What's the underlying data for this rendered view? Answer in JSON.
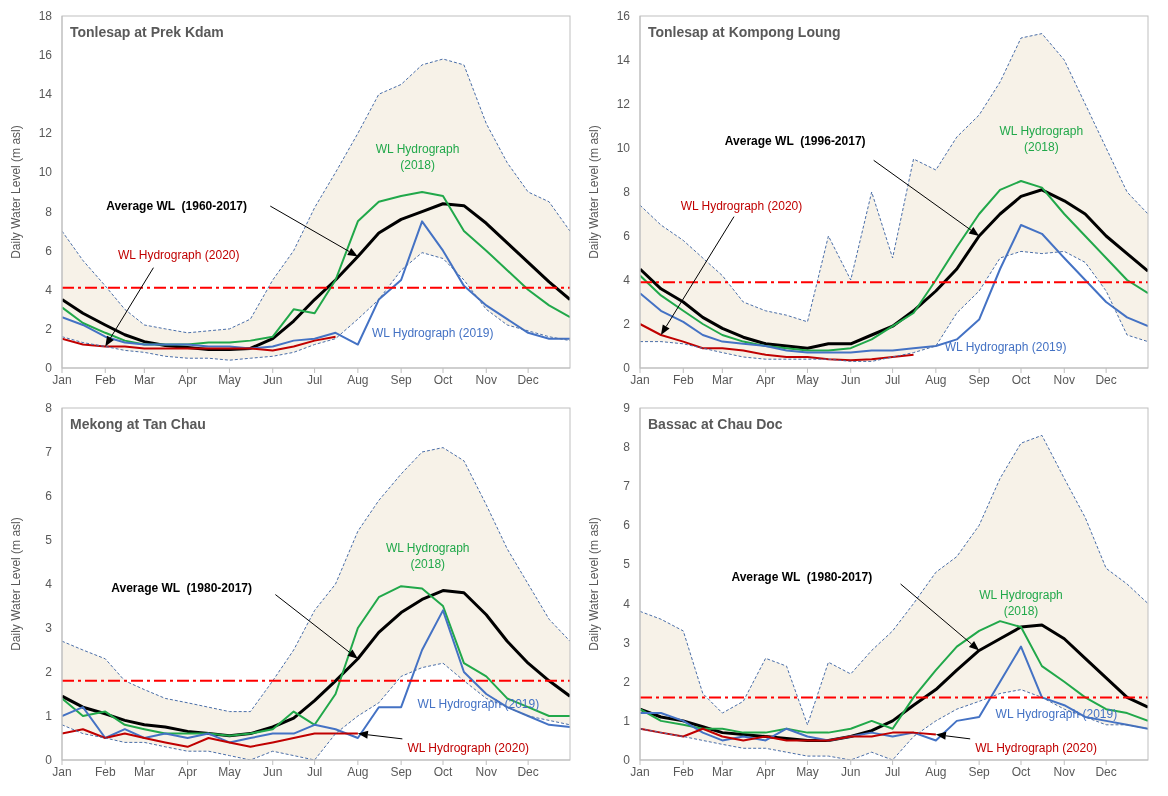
{
  "chart_data": [
    {
      "type": "line",
      "title": "Tonlesap at Prek Kdam",
      "ylabel": "Daily Water Level (m asl)",
      "marker": "none",
      "legend": false,
      "x": [
        "--01-01",
        "--01-16",
        "--02-01",
        "--02-15",
        "--03-01",
        "--03-16",
        "--04-01",
        "--04-16",
        "--05-01",
        "--05-16",
        "--06-01",
        "--06-16",
        "--07-01",
        "--07-16",
        "--08-01",
        "--08-16",
        "--09-01",
        "--09-16",
        "--10-01",
        "--10-16",
        "--11-01",
        "--11-16",
        "--12-01",
        "--12-16",
        "--12-31"
      ],
      "xlim": [
        "--01-01",
        "--12-31"
      ],
      "xticks": [
        {
          "value": "--01-01",
          "label": "Jan"
        },
        {
          "value": "--02-01",
          "label": "Feb"
        },
        {
          "value": "--03-01",
          "label": "Mar"
        },
        {
          "value": "--04-01",
          "label": "Apr"
        },
        {
          "value": "--05-01",
          "label": "May"
        },
        {
          "value": "--06-01",
          "label": "Jun"
        },
        {
          "value": "--07-01",
          "label": "Jul"
        },
        {
          "value": "--08-01",
          "label": "Aug"
        },
        {
          "value": "--09-01",
          "label": "Sep"
        },
        {
          "value": "--10-01",
          "label": "Oct"
        },
        {
          "value": "--11-01",
          "label": "Nov"
        },
        {
          "value": "--12-01",
          "label": "Dec"
        }
      ],
      "ylim": [
        0,
        18
      ],
      "yticks": [
        0,
        2,
        4,
        6,
        8,
        10,
        12,
        14,
        16,
        18
      ],
      "series": [
        {
          "name": "Average WL  (1960-2017)",
          "color": "#000000",
          "values": [
            3.5,
            2.8,
            2.2,
            1.7,
            1.35,
            1.15,
            1.05,
            0.95,
            0.95,
            1.0,
            1.5,
            2.4,
            3.5,
            4.5,
            5.7,
            6.9,
            7.6,
            8.0,
            8.4,
            8.3,
            7.4,
            6.4,
            5.4,
            4.4,
            3.5
          ],
          "lower": [
            1.6,
            1.3,
            1.1,
            0.9,
            0.8,
            0.6,
            0.5,
            0.5,
            0.4,
            0.5,
            0.6,
            0.8,
            1.2,
            1.5,
            2.5,
            3.5,
            5.0,
            5.9,
            5.6,
            4.5,
            3.0,
            2.2,
            1.9,
            1.6,
            1.4
          ],
          "upper": [
            7.0,
            5.5,
            4.2,
            3.0,
            2.2,
            2.0,
            1.8,
            1.9,
            2.0,
            2.5,
            4.5,
            6.0,
            8.2,
            10.0,
            12.0,
            14.0,
            14.5,
            15.5,
            15.8,
            15.5,
            12.5,
            10.5,
            9.0,
            8.5,
            7.0
          ]
        },
        {
          "name": "WL Hydrograph (2018)",
          "color": "#21a84a",
          "values": [
            3.1,
            2.3,
            1.8,
            1.4,
            1.2,
            1.2,
            1.2,
            1.3,
            1.3,
            1.4,
            1.6,
            3.0,
            2.8,
            4.5,
            7.5,
            8.5,
            8.8,
            9.0,
            8.8,
            7.0,
            6.0,
            5.0,
            4.0,
            3.2,
            2.6
          ]
        },
        {
          "name": "WL Hydrograph (2019)",
          "color": "#4472c4",
          "values": [
            2.6,
            2.2,
            1.6,
            1.3,
            1.2,
            1.2,
            1.2,
            1.1,
            1.1,
            1.0,
            1.1,
            1.4,
            1.5,
            1.8,
            1.2,
            3.5,
            4.5,
            7.5,
            6.0,
            4.2,
            3.2,
            2.5,
            1.8,
            1.5,
            1.5
          ]
        },
        {
          "name": "WL Hydrograph (2020)",
          "color": "#c00000",
          "values": [
            1.5,
            1.2,
            1.1,
            1.1,
            1.0,
            1.0,
            1.0,
            1.0,
            1.0,
            1.0,
            0.9,
            1.1,
            1.4,
            1.6,
            null,
            null,
            null,
            null,
            null,
            null,
            null,
            null,
            null,
            null,
            null
          ]
        },
        {
          "color": "#4a6ea8",
          "line_style": "dashed",
          "values": [
            7.0,
            5.5,
            4.2,
            3.0,
            2.2,
            2.0,
            1.8,
            1.9,
            2.0,
            2.5,
            4.5,
            6.0,
            8.2,
            10.0,
            12.0,
            14.0,
            14.5,
            15.5,
            15.8,
            15.5,
            12.5,
            10.5,
            9.0,
            8.5,
            7.0
          ]
        },
        {
          "color": "#4a6ea8",
          "line_style": "dashed",
          "values": [
            1.6,
            1.3,
            1.1,
            0.9,
            0.8,
            0.6,
            0.5,
            0.5,
            0.4,
            0.5,
            0.6,
            0.8,
            1.2,
            1.5,
            2.5,
            3.5,
            5.0,
            5.9,
            5.6,
            4.5,
            3.0,
            2.2,
            1.9,
            1.6,
            1.4
          ]
        }
      ],
      "ref_lines": [
        {
          "axis": "y",
          "value": 4.1,
          "color": "#ff0000",
          "line_style": "dashed"
        }
      ]
    },
    {
      "type": "line",
      "title": "Tonlesap at Kompong Loung",
      "ylabel": "Daily Water Level (m asl)",
      "marker": "none",
      "legend": false,
      "x": [
        "--01-01",
        "--01-16",
        "--02-01",
        "--02-15",
        "--03-01",
        "--03-16",
        "--04-01",
        "--04-16",
        "--05-01",
        "--05-16",
        "--06-01",
        "--06-16",
        "--07-01",
        "--07-16",
        "--08-01",
        "--08-16",
        "--09-01",
        "--09-16",
        "--10-01",
        "--10-16",
        "--11-01",
        "--11-16",
        "--12-01",
        "--12-16",
        "--12-31"
      ],
      "xlim": [
        "--01-01",
        "--12-31"
      ],
      "xticks": [
        {
          "value": "--01-01",
          "label": "Jan"
        },
        {
          "value": "--02-01",
          "label": "Feb"
        },
        {
          "value": "--03-01",
          "label": "Mar"
        },
        {
          "value": "--04-01",
          "label": "Apr"
        },
        {
          "value": "--05-01",
          "label": "May"
        },
        {
          "value": "--06-01",
          "label": "Jun"
        },
        {
          "value": "--07-01",
          "label": "Jul"
        },
        {
          "value": "--08-01",
          "label": "Aug"
        },
        {
          "value": "--09-01",
          "label": "Sep"
        },
        {
          "value": "--10-01",
          "label": "Oct"
        },
        {
          "value": "--11-01",
          "label": "Nov"
        },
        {
          "value": "--12-01",
          "label": "Dec"
        }
      ],
      "ylim": [
        0,
        16
      ],
      "yticks": [
        0,
        2,
        4,
        6,
        8,
        10,
        12,
        14,
        16
      ],
      "series": [
        {
          "name": "Average WL  (1996-2017)",
          "color": "#000000",
          "values": [
            4.5,
            3.6,
            3.0,
            2.3,
            1.8,
            1.4,
            1.1,
            1.0,
            0.9,
            1.1,
            1.1,
            1.5,
            1.9,
            2.6,
            3.5,
            4.5,
            6.0,
            7.0,
            7.8,
            8.1,
            7.6,
            7.0,
            6.0,
            5.2,
            4.4
          ],
          "lower": [
            1.2,
            1.2,
            1.1,
            0.9,
            0.7,
            0.5,
            0.4,
            0.4,
            0.4,
            0.4,
            0.3,
            0.3,
            0.5,
            0.7,
            1.0,
            2.5,
            3.5,
            5.0,
            5.3,
            5.2,
            5.3,
            4.8,
            3.5,
            1.5,
            1.2
          ],
          "upper": [
            7.4,
            6.5,
            5.8,
            5.0,
            4.2,
            3.0,
            2.6,
            2.4,
            2.1,
            6.0,
            4.0,
            8.0,
            5.0,
            9.5,
            9.0,
            10.5,
            11.5,
            13.0,
            15.0,
            15.2,
            14.0,
            12.0,
            10.0,
            8.0,
            7.0
          ]
        },
        {
          "name": "WL Hydrograph (2018)",
          "color": "#21a84a",
          "values": [
            4.2,
            3.3,
            2.6,
            2.0,
            1.5,
            1.2,
            1.0,
            0.9,
            0.8,
            0.8,
            0.9,
            1.3,
            1.9,
            2.5,
            4.0,
            5.5,
            7.0,
            8.1,
            8.5,
            8.2,
            7.0,
            6.0,
            5.0,
            4.0,
            3.4
          ]
        },
        {
          "name": "WL Hydrograph (2019)",
          "color": "#4472c4",
          "values": [
            3.4,
            2.6,
            2.1,
            1.5,
            1.2,
            1.1,
            1.0,
            0.8,
            0.7,
            0.7,
            0.7,
            0.8,
            0.8,
            0.9,
            1.0,
            1.3,
            2.2,
            4.5,
            6.5,
            6.1,
            5.0,
            4.0,
            3.0,
            2.3,
            1.9
          ]
        },
        {
          "name": "WL Hydrograph (2020)",
          "color": "#c00000",
          "values": [
            2.0,
            1.5,
            1.2,
            0.9,
            0.9,
            0.8,
            0.6,
            0.5,
            0.5,
            0.4,
            0.35,
            0.4,
            0.5,
            0.6,
            null,
            null,
            null,
            null,
            null,
            null,
            null,
            null,
            null,
            null,
            null
          ]
        },
        {
          "color": "#4a6ea8",
          "line_style": "dashed",
          "values": [
            7.4,
            6.5,
            5.8,
            5.0,
            4.2,
            3.0,
            2.6,
            2.4,
            2.1,
            6.0,
            4.0,
            8.0,
            5.0,
            9.5,
            9.0,
            10.5,
            11.5,
            13.0,
            15.0,
            15.2,
            14.0,
            12.0,
            10.0,
            8.0,
            7.0
          ]
        },
        {
          "color": "#4a6ea8",
          "line_style": "dashed",
          "values": [
            1.2,
            1.2,
            1.1,
            0.9,
            0.7,
            0.5,
            0.4,
            0.4,
            0.4,
            0.4,
            0.3,
            0.3,
            0.5,
            0.7,
            1.0,
            2.5,
            3.5,
            5.0,
            5.3,
            5.2,
            5.3,
            4.8,
            3.5,
            1.5,
            1.2
          ]
        }
      ],
      "ref_lines": [
        {
          "axis": "y",
          "value": 3.9,
          "color": "#ff0000",
          "line_style": "dashed"
        }
      ]
    },
    {
      "type": "line",
      "title": "Mekong at Tan Chau",
      "ylabel": "Daily Water Level (m asl)",
      "marker": "none",
      "legend": false,
      "x": [
        "--01-01",
        "--01-16",
        "--02-01",
        "--02-15",
        "--03-01",
        "--03-16",
        "--04-01",
        "--04-16",
        "--05-01",
        "--05-16",
        "--06-01",
        "--06-16",
        "--07-01",
        "--07-16",
        "--08-01",
        "--08-16",
        "--09-01",
        "--09-16",
        "--10-01",
        "--10-16",
        "--11-01",
        "--11-16",
        "--12-01",
        "--12-16",
        "--12-31"
      ],
      "xlim": [
        "--01-01",
        "--12-31"
      ],
      "xticks": [
        {
          "value": "--01-01",
          "label": "Jan"
        },
        {
          "value": "--02-01",
          "label": "Feb"
        },
        {
          "value": "--03-01",
          "label": "Mar"
        },
        {
          "value": "--04-01",
          "label": "Apr"
        },
        {
          "value": "--05-01",
          "label": "May"
        },
        {
          "value": "--06-01",
          "label": "Jun"
        },
        {
          "value": "--07-01",
          "label": "Jul"
        },
        {
          "value": "--08-01",
          "label": "Aug"
        },
        {
          "value": "--09-01",
          "label": "Sep"
        },
        {
          "value": "--10-01",
          "label": "Oct"
        },
        {
          "value": "--11-01",
          "label": "Nov"
        },
        {
          "value": "--12-01",
          "label": "Dec"
        }
      ],
      "ylim": [
        0,
        8
      ],
      "yticks": [
        0,
        1,
        2,
        3,
        4,
        5,
        6,
        7,
        8
      ],
      "series": [
        {
          "name": "Average WL  (1980-2017)",
          "color": "#000000",
          "values": [
            1.45,
            1.2,
            1.05,
            0.9,
            0.8,
            0.75,
            0.65,
            0.6,
            0.55,
            0.6,
            0.75,
            0.95,
            1.35,
            1.8,
            2.3,
            2.9,
            3.35,
            3.65,
            3.85,
            3.8,
            3.3,
            2.7,
            2.2,
            1.8,
            1.45
          ],
          "lower": [
            0.8,
            0.6,
            0.5,
            0.4,
            0.4,
            0.3,
            0.2,
            0.2,
            0.1,
            0.0,
            0.2,
            0.1,
            0.0,
            0.6,
            1.0,
            1.3,
            1.9,
            2.1,
            2.2,
            1.8,
            1.4,
            1.2,
            1.0,
            0.9,
            0.8
          ],
          "upper": [
            2.7,
            2.5,
            2.3,
            1.8,
            1.6,
            1.4,
            1.3,
            1.2,
            1.1,
            1.1,
            1.8,
            2.5,
            3.4,
            4.0,
            5.2,
            5.9,
            6.5,
            7.0,
            7.1,
            6.8,
            5.8,
            4.8,
            4.0,
            3.2,
            2.7
          ]
        },
        {
          "name": "WL Hydrograph (2018)",
          "color": "#21a84a",
          "values": [
            1.4,
            1.0,
            1.1,
            0.8,
            0.7,
            0.6,
            0.6,
            0.6,
            0.55,
            0.6,
            0.7,
            1.1,
            0.8,
            1.5,
            3.0,
            3.7,
            3.95,
            3.9,
            3.5,
            2.2,
            1.9,
            1.4,
            1.2,
            1.0,
            1.0
          ]
        },
        {
          "name": "WL Hydrograph (2019)",
          "color": "#4472c4",
          "values": [
            1.0,
            1.2,
            0.5,
            0.7,
            0.5,
            0.6,
            0.5,
            0.6,
            0.4,
            0.5,
            0.6,
            0.6,
            0.8,
            0.7,
            0.5,
            1.2,
            1.2,
            2.5,
            3.4,
            2.0,
            1.5,
            1.2,
            1.0,
            0.8,
            0.75
          ]
        },
        {
          "name": "WL Hydrograph (2020)",
          "color": "#c00000",
          "values": [
            0.6,
            0.7,
            0.5,
            0.6,
            0.5,
            0.4,
            0.3,
            0.5,
            0.4,
            0.3,
            0.4,
            0.5,
            0.6,
            0.6,
            0.6,
            null,
            null,
            null,
            null,
            null,
            null,
            null,
            null,
            null,
            null
          ]
        },
        {
          "color": "#4a6ea8",
          "line_style": "dashed",
          "values": [
            2.7,
            2.5,
            2.3,
            1.8,
            1.6,
            1.4,
            1.3,
            1.2,
            1.1,
            1.1,
            1.8,
            2.5,
            3.4,
            4.0,
            5.2,
            5.9,
            6.5,
            7.0,
            7.1,
            6.8,
            5.8,
            4.8,
            4.0,
            3.2,
            2.7
          ]
        },
        {
          "color": "#4a6ea8",
          "line_style": "dashed",
          "values": [
            0.8,
            0.6,
            0.5,
            0.4,
            0.4,
            0.3,
            0.2,
            0.2,
            0.1,
            0.0,
            0.2,
            0.1,
            0.0,
            0.6,
            1.0,
            1.3,
            1.9,
            2.1,
            2.2,
            1.8,
            1.4,
            1.2,
            1.0,
            0.9,
            0.8
          ]
        }
      ],
      "ref_lines": [
        {
          "axis": "y",
          "value": 1.8,
          "color": "#ff0000",
          "line_style": "dashed"
        }
      ]
    },
    {
      "type": "line",
      "title": "Bassac at Chau Doc",
      "ylabel": "Daily Water Level (m asl)",
      "marker": "none",
      "legend": false,
      "x": [
        "--01-01",
        "--01-16",
        "--02-01",
        "--02-15",
        "--03-01",
        "--03-16",
        "--04-01",
        "--04-16",
        "--05-01",
        "--05-16",
        "--06-01",
        "--06-16",
        "--07-01",
        "--07-16",
        "--08-01",
        "--08-16",
        "--09-01",
        "--09-16",
        "--10-01",
        "--10-16",
        "--11-01",
        "--11-16",
        "--12-01",
        "--12-16",
        "--12-31"
      ],
      "xlim": [
        "--01-01",
        "--12-31"
      ],
      "xticks": [
        {
          "value": "--01-01",
          "label": "Jan"
        },
        {
          "value": "--02-01",
          "label": "Feb"
        },
        {
          "value": "--03-01",
          "label": "Mar"
        },
        {
          "value": "--04-01",
          "label": "Apr"
        },
        {
          "value": "--05-01",
          "label": "May"
        },
        {
          "value": "--06-01",
          "label": "Jun"
        },
        {
          "value": "--07-01",
          "label": "Jul"
        },
        {
          "value": "--08-01",
          "label": "Aug"
        },
        {
          "value": "--09-01",
          "label": "Sep"
        },
        {
          "value": "--10-01",
          "label": "Oct"
        },
        {
          "value": "--11-01",
          "label": "Nov"
        },
        {
          "value": "--12-01",
          "label": "Dec"
        }
      ],
      "ylim": [
        0,
        9
      ],
      "yticks": [
        0,
        1,
        2,
        3,
        4,
        5,
        6,
        7,
        8,
        9
      ],
      "series": [
        {
          "name": "Average WL  (1980-2017)",
          "color": "#000000",
          "values": [
            1.3,
            1.1,
            1.0,
            0.85,
            0.7,
            0.65,
            0.6,
            0.55,
            0.5,
            0.5,
            0.6,
            0.75,
            1.0,
            1.4,
            1.8,
            2.3,
            2.8,
            3.1,
            3.4,
            3.45,
            3.1,
            2.6,
            2.1,
            1.6,
            1.35
          ],
          "lower": [
            0.8,
            0.7,
            0.6,
            0.5,
            0.4,
            0.3,
            0.3,
            0.2,
            0.1,
            0.1,
            0.0,
            0.2,
            0.0,
            0.6,
            1.0,
            1.3,
            1.5,
            1.7,
            1.8,
            1.6,
            1.3,
            1.1,
            0.9,
            0.9,
            0.8
          ],
          "upper": [
            3.8,
            3.6,
            3.3,
            1.7,
            1.2,
            1.5,
            2.6,
            2.4,
            0.9,
            2.5,
            2.2,
            2.8,
            3.3,
            4.0,
            4.8,
            5.2,
            6.0,
            7.2,
            8.1,
            8.3,
            7.2,
            6.2,
            4.9,
            4.5,
            4.0
          ]
        },
        {
          "name": "WL Hydrograph (2018)",
          "color": "#21a84a",
          "values": [
            1.3,
            1.0,
            0.9,
            0.8,
            0.8,
            0.7,
            0.7,
            0.8,
            0.7,
            0.7,
            0.8,
            1.0,
            0.8,
            1.6,
            2.3,
            2.9,
            3.3,
            3.55,
            3.4,
            2.4,
            2.0,
            1.6,
            1.3,
            1.2,
            1.0
          ]
        },
        {
          "name": "WL Hydrograph (2019)",
          "color": "#4472c4",
          "values": [
            1.2,
            1.2,
            1.0,
            0.7,
            0.5,
            0.6,
            0.5,
            0.8,
            0.6,
            0.5,
            0.6,
            0.7,
            0.6,
            0.7,
            0.5,
            1.0,
            1.1,
            2.0,
            2.9,
            1.6,
            1.4,
            1.1,
            1.0,
            0.9,
            0.8
          ]
        },
        {
          "name": "WL Hydrograph (2020)",
          "color": "#c00000",
          "values": [
            0.8,
            0.7,
            0.6,
            0.8,
            0.6,
            0.5,
            0.6,
            0.5,
            0.5,
            0.5,
            0.6,
            0.6,
            0.7,
            0.7,
            0.65,
            null,
            null,
            null,
            null,
            null,
            null,
            null,
            null,
            null,
            null
          ]
        },
        {
          "color": "#4a6ea8",
          "line_style": "dashed",
          "values": [
            3.8,
            3.6,
            3.3,
            1.7,
            1.2,
            1.5,
            2.6,
            2.4,
            0.9,
            2.5,
            2.2,
            2.8,
            3.3,
            4.0,
            4.8,
            5.2,
            6.0,
            7.2,
            8.1,
            8.3,
            7.2,
            6.2,
            4.9,
            4.5,
            4.0
          ]
        },
        {
          "color": "#4a6ea8",
          "line_style": "dashed",
          "values": [
            0.8,
            0.7,
            0.6,
            0.5,
            0.4,
            0.3,
            0.3,
            0.2,
            0.1,
            0.1,
            0.0,
            0.2,
            0.0,
            0.6,
            1.0,
            1.3,
            1.5,
            1.7,
            1.8,
            1.6,
            1.3,
            1.1,
            0.9,
            0.9,
            0.8
          ]
        }
      ],
      "ref_lines": [
        {
          "axis": "y",
          "value": 1.6,
          "color": "#ff0000",
          "line_style": "dashed"
        }
      ]
    }
  ]
}
